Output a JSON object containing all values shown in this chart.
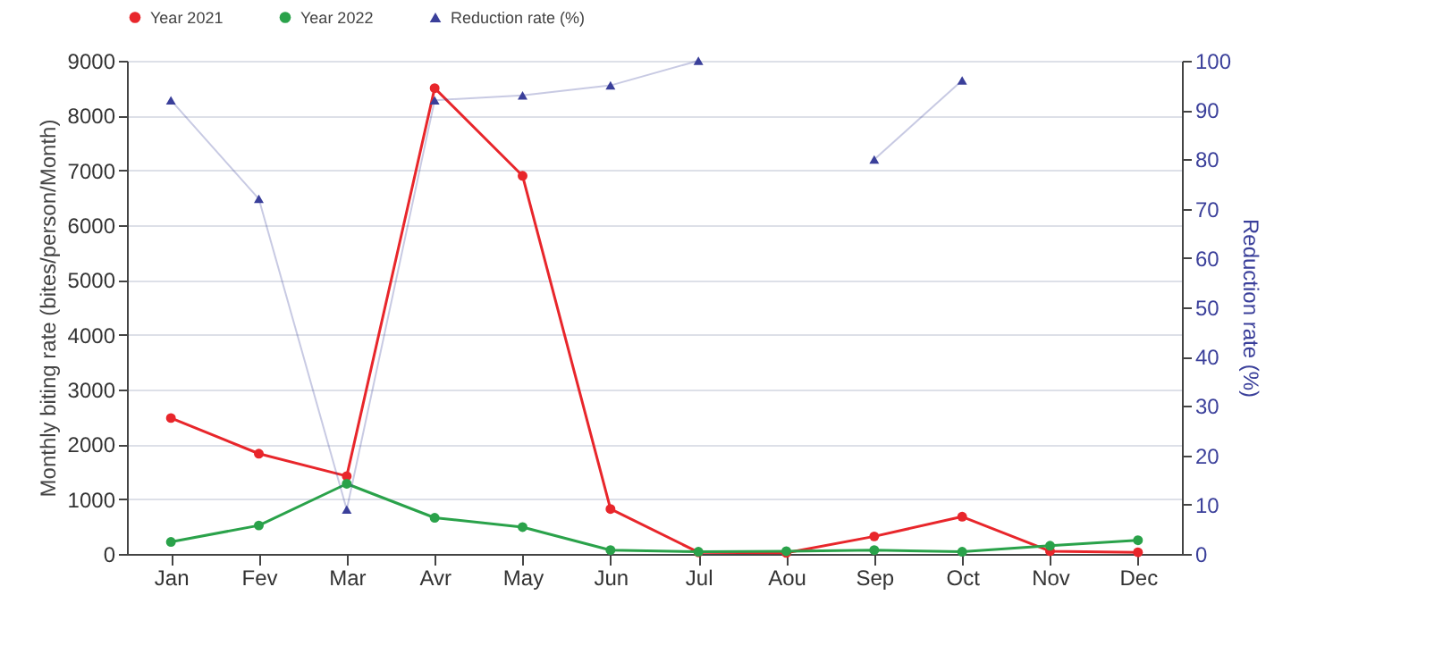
{
  "chart_data": {
    "type": "line",
    "categories": [
      "Jan",
      "Fev",
      "Mar",
      "Avr",
      "May",
      "Jun",
      "Jul",
      "Aou",
      "Sep",
      "Oct",
      "Nov",
      "Dec"
    ],
    "ylabel": "Monthly biting rate (bites/person/Month)",
    "y2label": "Reduction rate  (%)",
    "ylim": [
      0,
      9000
    ],
    "yticks": [
      0,
      1000,
      2000,
      3000,
      4000,
      5000,
      6000,
      7000,
      8000,
      9000
    ],
    "y2lim": [
      0,
      100
    ],
    "y2ticks": [
      0,
      10,
      20,
      30,
      40,
      50,
      60,
      70,
      80,
      90,
      100
    ],
    "grid": "y",
    "legend": "top",
    "series": [
      {
        "name": "Year 2021",
        "color": "#e8262b",
        "marker": "circle",
        "values": [
          2480,
          1830,
          1420,
          8500,
          6900,
          820,
          30,
          20,
          320,
          680,
          50,
          30
        ]
      },
      {
        "name": "Year 2022",
        "color": "#2aa24a",
        "marker": "circle",
        "values": [
          220,
          520,
          1280,
          660,
          490,
          70,
          40,
          50,
          70,
          40,
          150,
          250
        ]
      },
      {
        "name": "Reduction rate (%)",
        "color": "#3a3f9a",
        "marker": "triangle",
        "axis": "y2",
        "values": [
          92,
          72,
          9,
          92,
          93,
          95,
          100,
          null,
          80,
          96,
          null,
          null
        ]
      }
    ]
  }
}
